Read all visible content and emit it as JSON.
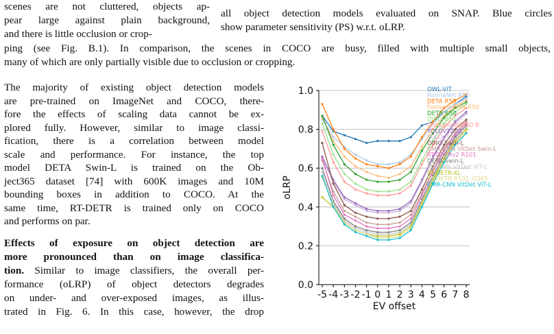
{
  "top_left": [
    "scenes are not cluttered, objects ap-",
    "pear large against plain background,",
    "and there is little occlusion or crop-"
  ],
  "caption_right": [
    "all object detection models evaluated on SNAP. Blue circles",
    "show parameter sensitivity (PS) w.r.t. oLRP."
  ],
  "full_lines": [
    "ping (see Fig. B.1). In comparison, the scenes in COCO are busy, filled with multiple small objects,",
    "many of which are only partially visible due to occlusion or cropping."
  ],
  "para1": [
    "The majority of existing object detection models",
    "are pre-trained on ImageNet and COCO, there-",
    "fore the effects of scaling data cannot be ex-",
    "plored fully. However, similar to image classi-",
    "fication, there is a correlation between model",
    "scale and performance. For instance, the top",
    "model DETA Swin-L is trained on the Ob-",
    "ject365 dataset [74] with 600K images and 10M",
    "bounding boxes in addition to COCO. At the",
    "same time, RT-DETR is trained only on COCO",
    "and performs on par."
  ],
  "para2_bold": [
    "Effects of exposure on object detection are",
    "more pronounced than on image classifica-",
    "tion."
  ],
  "para2_rest_first": " Similar to image classifiers, the overall per-",
  "para2": [
    "formance (oLRP) of object detectors degrades",
    "on under- and over-exposed images, as illus-",
    "trated in Fig. 6. In this case, however, the drop"
  ],
  "chart_data": {
    "type": "line",
    "x": [
      -5,
      -4,
      -3,
      -2,
      -1,
      0,
      1,
      2,
      3,
      4,
      5,
      6,
      7,
      8
    ],
    "x_tick_labels": [
      "-5",
      "-4",
      "-3",
      "-2",
      "-1",
      "0",
      "1",
      "2",
      "3",
      "4",
      "5",
      "6",
      "7",
      "8"
    ],
    "xlabel": "EV offset",
    "ylabel": "oLRP",
    "ylim": [
      0.0,
      1.0
    ],
    "y_ticks": [
      0.0,
      0.2,
      0.4,
      0.6,
      0.8,
      1.0
    ],
    "y_tick_labels": [
      "0.0",
      "0.2",
      "0.4",
      "0.6",
      "0.8",
      "1.0"
    ],
    "grid": "horizontal",
    "legend_position": "top-right",
    "series": [
      {
        "name": "OWL-ViT",
        "color": "#1f77b4",
        "values": [
          0.87,
          0.79,
          0.77,
          0.75,
          0.73,
          0.74,
          0.74,
          0.74,
          0.76,
          0.82,
          0.84,
          0.89,
          0.93,
          0.97
        ]
      },
      {
        "name": "RetinaNet R50",
        "color": "#aec7e8",
        "values": [
          0.85,
          0.76,
          0.71,
          0.67,
          0.64,
          0.62,
          0.62,
          0.63,
          0.67,
          0.75,
          0.83,
          0.89,
          0.93,
          0.96
        ]
      },
      {
        "name": "DETA R50",
        "color": "#ff7f0e",
        "values": [
          0.93,
          0.8,
          0.7,
          0.65,
          0.62,
          0.61,
          0.6,
          0.62,
          0.66,
          0.76,
          0.84,
          0.91,
          0.95,
          0.98
        ]
      },
      {
        "name": "Faster R-CNN R50",
        "color": "#ffbb78",
        "values": [
          0.86,
          0.74,
          0.66,
          0.61,
          0.58,
          0.56,
          0.55,
          0.57,
          0.61,
          0.71,
          0.8,
          0.87,
          0.92,
          0.95
        ]
      },
      {
        "name": "DETR R50",
        "color": "#2ca02c",
        "values": [
          0.87,
          0.72,
          0.62,
          0.57,
          0.54,
          0.53,
          0.53,
          0.54,
          0.58,
          0.69,
          0.78,
          0.86,
          0.91,
          0.94
        ]
      },
      {
        "name": "DINO R50",
        "color": "#98df8a",
        "values": [
          0.83,
          0.67,
          0.57,
          0.52,
          0.49,
          0.48,
          0.48,
          0.49,
          0.53,
          0.64,
          0.74,
          0.83,
          0.89,
          0.93
        ]
      },
      {
        "name": "GroundingDINO B",
        "color": "#ff9896",
        "values": [
          0.79,
          0.63,
          0.53,
          0.49,
          0.47,
          0.46,
          0.46,
          0.47,
          0.51,
          0.62,
          0.72,
          0.81,
          0.87,
          0.91
        ]
      },
      {
        "name": "YOLOv12-XL",
        "color": "#9467bd",
        "values": [
          0.66,
          0.54,
          0.45,
          0.42,
          0.39,
          0.38,
          0.38,
          0.39,
          0.43,
          0.54,
          0.66,
          0.76,
          0.84,
          0.89
        ]
      },
      {
        "name": "YOLOv11-XL",
        "color": "#c5b0d5",
        "values": [
          0.65,
          0.53,
          0.44,
          0.41,
          0.38,
          0.37,
          0.37,
          0.38,
          0.42,
          0.53,
          0.65,
          0.75,
          0.83,
          0.88
        ]
      },
      {
        "name": "DINO Swin-L",
        "color": "#8c564b",
        "values": [
          0.73,
          0.52,
          0.41,
          0.37,
          0.35,
          0.34,
          0.34,
          0.35,
          0.38,
          0.49,
          0.61,
          0.72,
          0.8,
          0.85
        ]
      },
      {
        "name": "CMR-CNN VitDet Swin-L",
        "color": "#c49c94",
        "values": [
          0.64,
          0.48,
          0.38,
          0.35,
          0.32,
          0.31,
          0.31,
          0.32,
          0.36,
          0.47,
          0.59,
          0.7,
          0.78,
          0.84
        ]
      },
      {
        "name": "RT-DETRv2 R101",
        "color": "#e377c2",
        "values": [
          0.65,
          0.46,
          0.36,
          0.33,
          0.3,
          0.29,
          0.29,
          0.3,
          0.34,
          0.46,
          0.58,
          0.69,
          0.77,
          0.83
        ]
      },
      {
        "name": "DETA Swin-L",
        "color": "#7f7f7f",
        "values": [
          0.6,
          0.43,
          0.34,
          0.3,
          0.28,
          0.27,
          0.27,
          0.28,
          0.32,
          0.44,
          0.56,
          0.67,
          0.76,
          0.82
        ]
      },
      {
        "name": "MR-CNN VitDet ViT-L",
        "color": "#c7c7c7",
        "values": [
          0.58,
          0.42,
          0.33,
          0.29,
          0.27,
          0.26,
          0.26,
          0.27,
          0.31,
          0.43,
          0.55,
          0.66,
          0.75,
          0.81
        ]
      },
      {
        "name": "RT-DETR-XL",
        "color": "#bcbd22",
        "values": [
          0.45,
          0.4,
          0.32,
          0.28,
          0.26,
          0.25,
          0.25,
          0.26,
          0.3,
          0.42,
          0.54,
          0.65,
          0.74,
          0.8
        ]
      },
      {
        "name": "RT-DETR R101_O365",
        "color": "#dbdb8d",
        "values": [
          0.55,
          0.41,
          0.32,
          0.28,
          0.26,
          0.24,
          0.24,
          0.25,
          0.29,
          0.41,
          0.53,
          0.64,
          0.73,
          0.79
        ]
      },
      {
        "name": "CMR-CNN VitDet ViT-L",
        "color": "#17becf",
        "values": [
          0.56,
          0.4,
          0.31,
          0.27,
          0.25,
          0.23,
          0.23,
          0.24,
          0.28,
          0.4,
          0.52,
          0.63,
          0.72,
          0.78
        ]
      }
    ]
  }
}
